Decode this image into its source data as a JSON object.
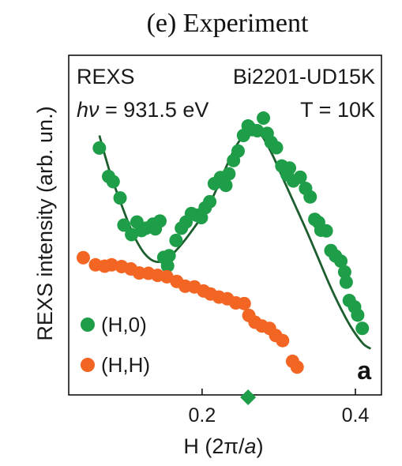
{
  "chart_data": {
    "type": "scatter",
    "title": "(e) Experiment",
    "xlabel": "H (2π/a)",
    "xlabel_parts": {
      "prefix": "H (2π/",
      "italic": "a",
      "suffix": ")"
    },
    "ylabel": "REXS intensity (arb. un.)",
    "xlim": [
      0.026,
      0.434
    ],
    "ylim": [
      0.0,
      1.0
    ],
    "x_ticks": [
      0.2,
      0.4
    ],
    "x_tick_labels": [
      "0.2",
      "0.4"
    ],
    "grid": false,
    "legend_position": "bottom-left",
    "annotations": {
      "top_left": "REXS",
      "top_right": "Bi2201-UD15K",
      "energy_symbol": "hν",
      "energy_value": " = 931.5 eV",
      "temperature": "T = 10K",
      "panel_letter": "a"
    },
    "marker": {
      "x": 0.26,
      "color": "#1e9e48"
    },
    "series": [
      {
        "name": "(H,0)",
        "color": "#1e9e48",
        "x": [
          0.066,
          0.078,
          0.084,
          0.093,
          0.098,
          0.108,
          0.115,
          0.121,
          0.127,
          0.136,
          0.139,
          0.145,
          0.15,
          0.155,
          0.157,
          0.166,
          0.173,
          0.179,
          0.186,
          0.193,
          0.199,
          0.204,
          0.21,
          0.216,
          0.224,
          0.231,
          0.235,
          0.241,
          0.247,
          0.254,
          0.26,
          0.265,
          0.272,
          0.28,
          0.285,
          0.29,
          0.297,
          0.304,
          0.311,
          0.314,
          0.319,
          0.328,
          0.335,
          0.341,
          0.347,
          0.352,
          0.355,
          0.362,
          0.368,
          0.374,
          0.381,
          0.386,
          0.388,
          0.392,
          0.399,
          0.403,
          0.409
        ],
        "y": [
          0.727,
          0.643,
          0.628,
          0.58,
          0.5,
          0.472,
          0.509,
          0.484,
          0.491,
          0.503,
          0.489,
          0.512,
          0.405,
          0.38,
          0.41,
          0.455,
          0.491,
          0.509,
          0.534,
          0.529,
          0.522,
          0.551,
          0.569,
          0.622,
          0.64,
          0.617,
          0.651,
          0.69,
          0.718,
          0.764,
          0.792,
          0.781,
          0.778,
          0.815,
          0.77,
          0.744,
          0.728,
          0.674,
          0.648,
          0.668,
          0.63,
          0.641,
          0.608,
          0.583,
          0.517,
          0.508,
          0.485,
          0.483,
          0.425,
          0.409,
          0.394,
          0.362,
          0.332,
          0.278,
          0.259,
          0.235,
          0.196
        ]
      },
      {
        "name": "(H,H)",
        "color": "#f26522",
        "x": [
          0.045,
          0.061,
          0.073,
          0.082,
          0.095,
          0.107,
          0.118,
          0.13,
          0.142,
          0.154,
          0.167,
          0.178,
          0.19,
          0.202,
          0.211,
          0.222,
          0.233,
          0.244,
          0.255,
          0.261,
          0.269,
          0.278,
          0.288,
          0.296,
          0.305,
          0.318,
          0.324
        ],
        "y": [
          0.404,
          0.383,
          0.379,
          0.383,
          0.378,
          0.371,
          0.359,
          0.358,
          0.352,
          0.348,
          0.334,
          0.32,
          0.318,
          0.306,
          0.297,
          0.288,
          0.283,
          0.271,
          0.269,
          0.234,
          0.214,
          0.203,
          0.196,
          0.175,
          0.16,
          0.099,
          0.082
        ]
      }
    ],
    "fit_curve": {
      "color": "#1d5e2e",
      "x": [
        0.066,
        0.08,
        0.095,
        0.11,
        0.125,
        0.14,
        0.155,
        0.17,
        0.185,
        0.2,
        0.215,
        0.23,
        0.245,
        0.26,
        0.275,
        0.29,
        0.305,
        0.32,
        0.335,
        0.35,
        0.365,
        0.38,
        0.395,
        0.41,
        0.42
      ],
      "y": [
        0.764,
        0.654,
        0.559,
        0.474,
        0.416,
        0.392,
        0.402,
        0.435,
        0.478,
        0.527,
        0.587,
        0.664,
        0.735,
        0.776,
        0.77,
        0.715,
        0.64,
        0.565,
        0.49,
        0.411,
        0.331,
        0.259,
        0.197,
        0.151,
        0.136
      ]
    }
  }
}
